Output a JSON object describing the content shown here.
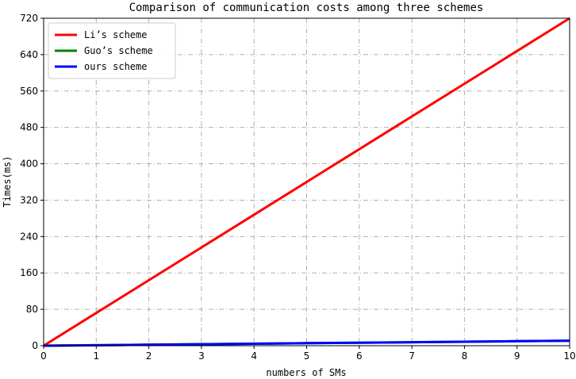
{
  "chart_data": {
    "type": "line",
    "title": "Comparison of communication costs among three schemes",
    "xlabel": "numbers of SMs",
    "ylabel": "Times(ms)",
    "xlim": [
      0,
      10
    ],
    "ylim": [
      0,
      720
    ],
    "xticks": [
      0,
      1,
      2,
      3,
      4,
      5,
      6,
      7,
      8,
      9,
      10
    ],
    "yticks": [
      0,
      80,
      160,
      240,
      320,
      400,
      480,
      560,
      640,
      720
    ],
    "grid": true,
    "grid_style": "dashdot",
    "legend_position": "top-left",
    "x": [
      0,
      1,
      2,
      3,
      4,
      5,
      6,
      7,
      8,
      9,
      10
    ],
    "series": [
      {
        "name": "Li’s scheme",
        "color": "#ff0000",
        "values": [
          0,
          72,
          144,
          216,
          288,
          360,
          432,
          504,
          576,
          648,
          720
        ]
      },
      {
        "name": "Guo’s scheme",
        "color": "#008000",
        "values": [
          0,
          1.1,
          2.2,
          3.3,
          4.4,
          5.5,
          6.6,
          7.7,
          8.8,
          9.9,
          11
        ]
      },
      {
        "name": "ours scheme",
        "color": "#0000ff",
        "values": [
          0,
          1.1,
          2.2,
          3.3,
          4.4,
          5.5,
          6.6,
          7.7,
          8.8,
          9.9,
          11
        ]
      }
    ]
  }
}
